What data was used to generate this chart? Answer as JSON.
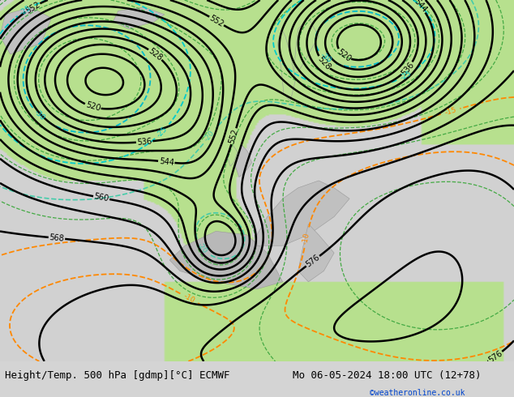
{
  "title_left": "Height/Temp. 500 hPa [gdmp][°C] ECMWF",
  "title_right": "Mo 06-05-2024 18:00 UTC (12+78)",
  "copyright": "©weatheronline.co.uk",
  "bg_color": "#d8d8d8",
  "land_color": "#d0d0d0",
  "ocean_color": "#e8e8e8",
  "green_color": "#b8e090",
  "font_size_title": 9,
  "font_size_copyright": 7
}
